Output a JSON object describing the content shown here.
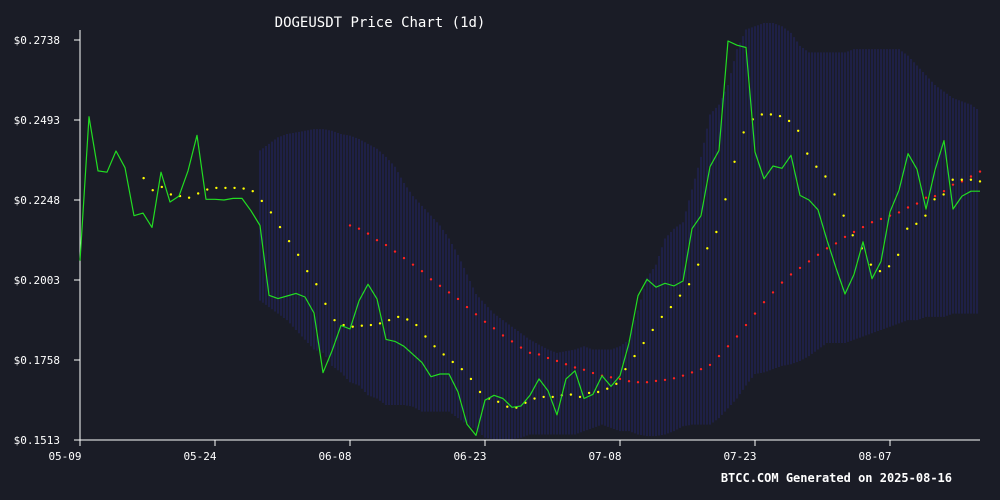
{
  "chart_data": {
    "type": "line",
    "title": "DOGEUSDT Price Chart (1d)",
    "footer": "BTCC.COM Generated on 2025-08-16",
    "start_date": "2025-05-09",
    "y_ticks": [
      "$0.1513",
      "$0.1758",
      "$0.2003",
      "$0.2248",
      "$0.2493",
      "$0.2738"
    ],
    "ylim": [
      0.1513,
      0.2738
    ],
    "x_ticks": [
      {
        "label": "05-09",
        "day": 0
      },
      {
        "label": "05-24",
        "day": 15
      },
      {
        "label": "06-08",
        "day": 30
      },
      {
        "label": "06-23",
        "day": 45
      },
      {
        "label": "07-08",
        "day": 60
      },
      {
        "label": "07-23",
        "day": 75
      },
      {
        "label": "08-07",
        "day": 90
      }
    ],
    "xlim": [
      0,
      100
    ],
    "colors": {
      "background": "#1a1c26",
      "price": "#22dd22",
      "ma_short": "#ffff00",
      "ma_long": "#ff2222",
      "band": "#2a2a9a",
      "axis": "#ffffff"
    },
    "series": [
      {
        "key": "price",
        "style": "line",
        "values": [
          0.2062,
          0.2503,
          0.2337,
          0.2333,
          0.2398,
          0.2347,
          0.22,
          0.2208,
          0.2164,
          0.2333,
          0.2242,
          0.226,
          0.2337,
          0.2446,
          0.225,
          0.225,
          0.2248,
          0.2253,
          0.2253,
          0.2215,
          0.217,
          0.1956,
          0.1946,
          0.1954,
          0.1962,
          0.1951,
          0.1902,
          0.1719,
          0.1786,
          0.1864,
          0.1853,
          0.1939,
          0.199,
          0.1945,
          0.1821,
          0.1815,
          0.18,
          0.1775,
          0.175,
          0.1707,
          0.1715,
          0.1715,
          0.166,
          0.1561,
          0.1527,
          0.1635,
          0.165,
          0.164,
          0.1613,
          0.1617,
          0.165,
          0.17,
          0.1664,
          0.159,
          0.17,
          0.1725,
          0.164,
          0.1653,
          0.171,
          0.1677,
          0.171,
          0.181,
          0.1955,
          0.2005,
          0.1981,
          0.1993,
          0.1985,
          0.2,
          0.216,
          0.22,
          0.235,
          0.24,
          0.2735,
          0.2722,
          0.2715,
          0.2395,
          0.2313,
          0.2352,
          0.2345,
          0.2385,
          0.2262,
          0.2248,
          0.2218,
          0.2125,
          0.204,
          0.196,
          0.202,
          0.212,
          0.2007,
          0.206,
          0.2212,
          0.2278,
          0.239,
          0.2342,
          0.222,
          0.234,
          0.243,
          0.222,
          0.226,
          0.2275,
          0.2275
        ]
      },
      {
        "key": "ma_short",
        "style": "dots",
        "values": [
          null,
          null,
          null,
          null,
          null,
          null,
          null,
          0.2315,
          0.2278,
          0.2288,
          0.2265,
          0.226,
          0.2255,
          0.2268,
          0.228,
          0.2285,
          0.2285,
          0.2285,
          0.2283,
          0.2275,
          0.2245,
          0.221,
          0.2165,
          0.2122,
          0.208,
          0.203,
          0.199,
          0.193,
          0.188,
          0.1865,
          0.186,
          0.1863,
          0.1865,
          0.187,
          0.188,
          0.189,
          0.1882,
          0.1865,
          0.183,
          0.18,
          0.1775,
          0.1752,
          0.173,
          0.17,
          0.166,
          0.164,
          0.163,
          0.1615,
          0.1612,
          0.1627,
          0.164,
          0.1645,
          0.1645,
          0.165,
          0.1652,
          0.1645,
          0.1657,
          0.166,
          0.167,
          0.1685,
          0.173,
          0.177,
          0.181,
          0.185,
          0.189,
          0.192,
          0.1955,
          0.199,
          0.205,
          0.21,
          0.215,
          0.225,
          0.2365,
          0.2455,
          0.2495,
          0.251,
          0.251,
          0.2505,
          0.249,
          0.246,
          0.239,
          0.235,
          0.232,
          0.2265,
          0.22,
          0.214,
          0.21,
          0.205,
          0.203,
          0.2045,
          0.208,
          0.216,
          0.2175,
          0.22,
          0.225,
          0.2265,
          0.231,
          0.231,
          0.231,
          0.2305
        ]
      },
      {
        "key": "ma_long",
        "style": "dots",
        "values": [
          null,
          null,
          null,
          null,
          null,
          null,
          null,
          null,
          null,
          null,
          null,
          null,
          null,
          null,
          null,
          null,
          null,
          null,
          null,
          null,
          null,
          null,
          null,
          null,
          null,
          null,
          null,
          null,
          null,
          null,
          0.217,
          0.216,
          0.2145,
          0.2125,
          0.211,
          0.209,
          0.207,
          0.205,
          0.203,
          0.2005,
          0.1985,
          0.1965,
          0.1945,
          0.192,
          0.1898,
          0.1875,
          0.1855,
          0.1833,
          0.1815,
          0.1796,
          0.178,
          0.1775,
          0.1764,
          0.1755,
          0.1745,
          0.1735,
          0.1728,
          0.1718,
          0.171,
          0.1705,
          0.17,
          0.1693,
          0.169,
          0.169,
          0.1694,
          0.1697,
          0.1702,
          0.171,
          0.172,
          0.173,
          0.1743,
          0.177,
          0.18,
          0.183,
          0.1865,
          0.19,
          0.1935,
          0.1965,
          0.1995,
          0.202,
          0.204,
          0.206,
          0.208,
          0.21,
          0.2115,
          0.2135,
          0.215,
          0.2165,
          0.218,
          0.219,
          0.22,
          0.221,
          0.2225,
          0.2237,
          0.2255,
          0.226,
          0.2275,
          0.2295,
          0.2305,
          0.232,
          0.2335
        ]
      },
      {
        "key": "band_upper",
        "style": "band",
        "values": [
          null,
          null,
          null,
          null,
          null,
          null,
          null,
          null,
          null,
          null,
          null,
          null,
          null,
          null,
          null,
          null,
          null,
          null,
          null,
          null,
          0.24,
          0.242,
          0.244,
          0.245,
          0.2455,
          0.246,
          0.2465,
          0.2465,
          0.246,
          0.245,
          0.2445,
          0.2435,
          0.242,
          0.2405,
          0.238,
          0.235,
          0.23,
          0.226,
          0.223,
          0.22,
          0.217,
          0.213,
          0.208,
          0.202,
          0.196,
          0.193,
          0.19,
          0.188,
          0.186,
          0.184,
          0.182,
          0.1805,
          0.179,
          0.178,
          0.1785,
          0.179,
          0.18,
          0.179,
          0.179,
          0.179,
          0.18,
          0.182,
          0.191,
          0.201,
          0.205,
          0.213,
          0.216,
          0.218,
          0.228,
          0.238,
          0.251,
          0.254,
          0.26,
          0.271,
          0.277,
          0.278,
          0.279,
          0.279,
          0.278,
          0.276,
          0.272,
          0.27,
          0.27,
          0.27,
          0.27,
          0.27,
          0.271,
          0.271,
          0.271,
          0.271,
          0.271,
          0.271,
          0.269,
          0.266,
          0.263,
          0.26,
          0.258,
          0.256,
          0.255,
          0.254,
          0.252
        ]
      },
      {
        "key": "band_lower",
        "style": "band",
        "values": [
          null,
          null,
          null,
          null,
          null,
          null,
          null,
          null,
          null,
          null,
          null,
          null,
          null,
          null,
          null,
          null,
          null,
          null,
          null,
          null,
          0.194,
          0.192,
          0.19,
          0.188,
          0.185,
          0.182,
          0.179,
          0.178,
          0.174,
          0.172,
          0.169,
          0.168,
          0.165,
          0.164,
          0.162,
          0.162,
          0.162,
          0.1615,
          0.16,
          0.16,
          0.16,
          0.16,
          0.158,
          0.156,
          0.1545,
          0.152,
          0.1515,
          0.1515,
          0.1515,
          0.152,
          0.153,
          0.153,
          0.153,
          0.153,
          0.153,
          0.153,
          0.154,
          0.155,
          0.156,
          0.155,
          0.154,
          0.154,
          0.153,
          0.1525,
          0.1525,
          0.153,
          0.154,
          0.1555,
          0.156,
          0.156,
          0.156,
          0.158,
          0.161,
          0.164,
          0.168,
          0.1715,
          0.172,
          0.173,
          0.174,
          0.1745,
          0.1755,
          0.177,
          0.179,
          0.181,
          0.181,
          0.181,
          0.182,
          0.183,
          0.184,
          0.185,
          0.186,
          0.187,
          0.188,
          0.188,
          0.189,
          0.189,
          0.189,
          0.19,
          0.19,
          0.19,
          0.19
        ]
      }
    ]
  }
}
